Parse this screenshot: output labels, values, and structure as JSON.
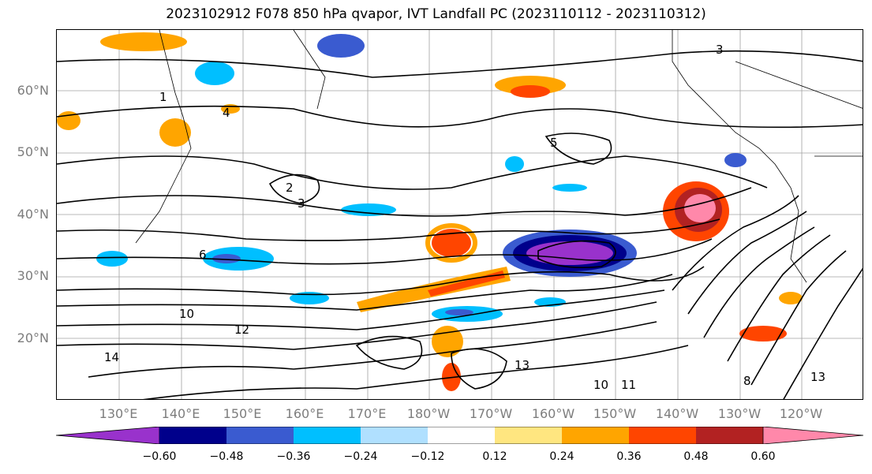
{
  "title": "2023102912 F078 850 hPa qvapor, IVT Landfall PC (2023110112 - 2023110312)",
  "lat_labels": [
    "60°N",
    "50°N",
    "40°N",
    "30°N",
    "20°N"
  ],
  "lon_labels": [
    "130°E",
    "140°E",
    "150°E",
    "160°E",
    "170°E",
    "180°W",
    "170°W",
    "160°W",
    "150°W",
    "140°W",
    "130°W",
    "120°W"
  ],
  "colorbar": {
    "ticks": [
      "−0.60",
      "−0.48",
      "−0.36",
      "−0.24",
      "−0.12",
      "0.12",
      "0.24",
      "0.36",
      "0.48",
      "0.60"
    ],
    "colors": [
      "#9932cc",
      "#00008b",
      "#3a5bd0",
      "#00bfff",
      "#b0e0ff",
      "#ffffff",
      "#ffe680",
      "#ffa500",
      "#ff4500",
      "#b22222",
      "#ff88aa"
    ]
  },
  "contour_labels": [
    "1",
    "2",
    "3",
    "4",
    "5",
    "6",
    "8",
    "10",
    "11",
    "12",
    "13",
    "14"
  ],
  "colors": {
    "text_axis": "#7d7d7d",
    "contour": "#000000",
    "grid": "#a0a0a0"
  }
}
